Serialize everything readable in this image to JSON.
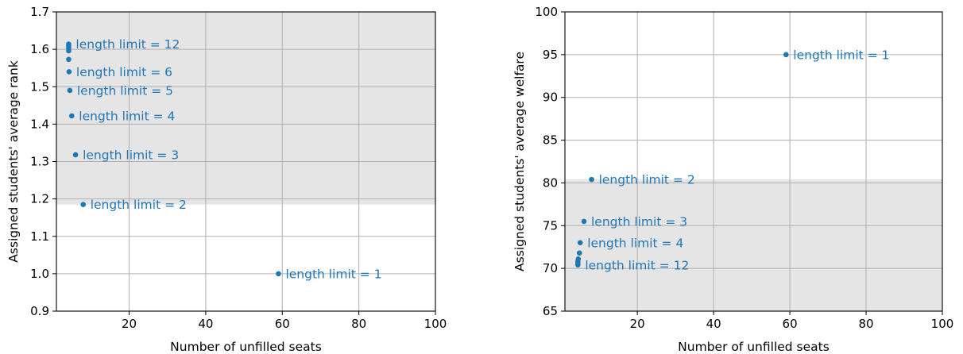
{
  "chart_data": [
    {
      "type": "scatter",
      "xlabel": "Number of unfilled seats",
      "ylabel": "Assigned students' average rank",
      "xlim": [
        1,
        100
      ],
      "ylim": [
        0.9,
        1.7
      ],
      "x_ticks": [
        20,
        40,
        60,
        80,
        100
      ],
      "y_ticks": [
        0.9,
        1.0,
        1.1,
        1.2,
        1.3,
        1.4,
        1.5,
        1.6,
        1.7
      ],
      "y_tick_decimals": 1,
      "grid": true,
      "shaded_region": {
        "y_from": 1.185,
        "y_to": 1.7,
        "color": "#e5e5e5"
      },
      "point_color": "#1f77b4",
      "points": [
        {
          "x": 59,
          "y": 1.0,
          "label": "length limit = 1"
        },
        {
          "x": 8,
          "y": 1.185,
          "label": "length limit = 2"
        },
        {
          "x": 6,
          "y": 1.318,
          "label": "length limit = 3"
        },
        {
          "x": 5,
          "y": 1.422,
          "label": "length limit = 4"
        },
        {
          "x": 4.5,
          "y": 1.49,
          "label": "length limit = 5"
        },
        {
          "x": 4.3,
          "y": 1.54,
          "label": "length limit = 6"
        },
        {
          "x": 4.2,
          "y": 1.573,
          "label": ""
        },
        {
          "x": 4.2,
          "y": 1.596,
          "label": ""
        },
        {
          "x": 4.2,
          "y": 1.603,
          "label": ""
        },
        {
          "x": 4.2,
          "y": 1.609,
          "label": ""
        },
        {
          "x": 4.2,
          "y": 1.614,
          "label": "length limit = 12"
        }
      ]
    },
    {
      "type": "scatter",
      "xlabel": "Number of unfilled seats",
      "ylabel": "Assigned students' average welfare",
      "xlim": [
        1,
        100
      ],
      "ylim": [
        65,
        100
      ],
      "x_ticks": [
        20,
        40,
        60,
        80,
        100
      ],
      "y_ticks": [
        65,
        70,
        75,
        80,
        85,
        90,
        95,
        100
      ],
      "y_tick_decimals": 0,
      "grid": true,
      "shaded_region": {
        "y_from": 65,
        "y_to": 80.4,
        "color": "#e5e5e5"
      },
      "point_color": "#1f77b4",
      "points": [
        {
          "x": 59,
          "y": 95.0,
          "label": "length limit = 1"
        },
        {
          "x": 8,
          "y": 80.4,
          "label": "length limit = 2"
        },
        {
          "x": 6,
          "y": 75.5,
          "label": "length limit = 3"
        },
        {
          "x": 5,
          "y": 73.0,
          "label": "length limit = 4"
        },
        {
          "x": 4.8,
          "y": 71.8,
          "label": ""
        },
        {
          "x": 4.5,
          "y": 71.1,
          "label": ""
        },
        {
          "x": 4.4,
          "y": 70.8,
          "label": ""
        },
        {
          "x": 4.4,
          "y": 70.6,
          "label": ""
        },
        {
          "x": 4.4,
          "y": 70.4,
          "label": "length limit = 12"
        }
      ]
    }
  ]
}
